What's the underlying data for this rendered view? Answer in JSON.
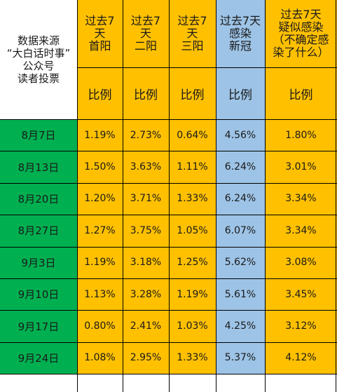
{
  "colors": {
    "orange": "#ffc000",
    "blue": "#9dc3e6",
    "green": "#00b050",
    "white": "#ffffff",
    "line": "#000000"
  },
  "chart_data": {
    "type": "table",
    "corner_label": "数据来源\n“大白话时事”\n公众号\n读者投票",
    "columns": [
      {
        "header": "过去7\n天\n首阳",
        "subheader": "比例",
        "color": "orange"
      },
      {
        "header": "过去7\n天\n二阳",
        "subheader": "比例",
        "color": "orange"
      },
      {
        "header": "过去7\n天\n三阳",
        "subheader": "比例",
        "color": "orange"
      },
      {
        "header": "过去7天\n感染\n新冠",
        "subheader": "比例",
        "color": "blue"
      },
      {
        "header": "过去7天\n疑似感染\n（不确定感\n染了什么）",
        "subheader": "比例",
        "color": "orange"
      }
    ],
    "rows": [
      {
        "date": "8月7日",
        "values": [
          "1.19%",
          "2.73%",
          "0.64%",
          "4.56%",
          "1.80%"
        ]
      },
      {
        "date": "8月13日",
        "values": [
          "1.50%",
          "3.63%",
          "1.11%",
          "6.24%",
          "3.01%"
        ]
      },
      {
        "date": "8月20日",
        "values": [
          "1.20%",
          "3.71%",
          "1.33%",
          "6.24%",
          "3.34%"
        ]
      },
      {
        "date": "8月27日",
        "values": [
          "1.27%",
          "3.75%",
          "1.05%",
          "6.07%",
          "3.34%"
        ]
      },
      {
        "date": "9月3日",
        "values": [
          "1.19%",
          "3.18%",
          "1.25%",
          "5.62%",
          "3.08%"
        ]
      },
      {
        "date": "9月10日",
        "values": [
          "1.13%",
          "3.28%",
          "1.19%",
          "5.61%",
          "3.45%"
        ]
      },
      {
        "date": "9月17日",
        "values": [
          "0.80%",
          "2.41%",
          "1.03%",
          "4.25%",
          "3.12%"
        ]
      },
      {
        "date": "9月24日",
        "values": [
          "1.08%",
          "2.95%",
          "1.33%",
          "5.37%",
          "4.12%"
        ]
      }
    ]
  }
}
